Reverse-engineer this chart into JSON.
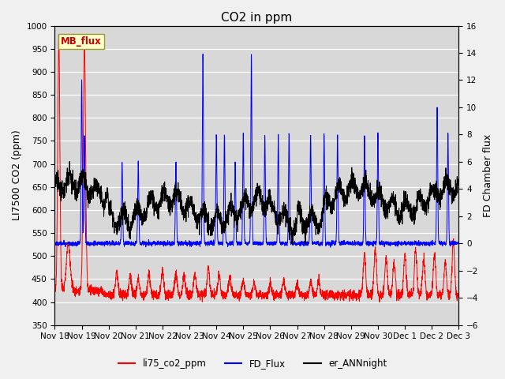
{
  "title": "CO2 in ppm",
  "ylabel_left": "LI7500 CO2 (ppm)",
  "ylabel_right": "FD Chamber flux",
  "ylim_left": [
    350,
    1000
  ],
  "ylim_right": [
    -6,
    16
  ],
  "yticks_left": [
    350,
    400,
    450,
    500,
    550,
    600,
    650,
    700,
    750,
    800,
    850,
    900,
    950,
    1000
  ],
  "yticks_right": [
    -6,
    -4,
    -2,
    0,
    2,
    4,
    6,
    8,
    10,
    12,
    14,
    16
  ],
  "xtick_labels": [
    "Nov 18",
    "Nov 19",
    "Nov 20",
    "Nov 21",
    "Nov 22",
    "Nov 23",
    "Nov 24",
    "Nov 25",
    "Nov 26",
    "Nov 27",
    "Nov 28",
    "Nov 29",
    "Nov 30",
    "Dec 1",
    "Dec 2",
    "Dec 3"
  ],
  "line_colors": {
    "red": "#ff0000",
    "blue": "#0000ff",
    "black": "#000000"
  },
  "mb_flux_label": "MB_flux",
  "mb_flux_color": "#cc0000",
  "mb_flux_bg": "#ffffcc",
  "mb_flux_border": "#999933",
  "legend_labels": [
    "li75_co2_ppm",
    "FD_Flux",
    "er_ANNnight"
  ],
  "legend_colors": [
    "#ff0000",
    "#0000ff",
    "#000000"
  ],
  "bg_color": "#d8d8d8",
  "fig_color": "#f0f0f0",
  "title_fontsize": 11,
  "label_fontsize": 9,
  "tick_fontsize": 7.5,
  "n_days": 15,
  "xlim": [
    0,
    15
  ]
}
